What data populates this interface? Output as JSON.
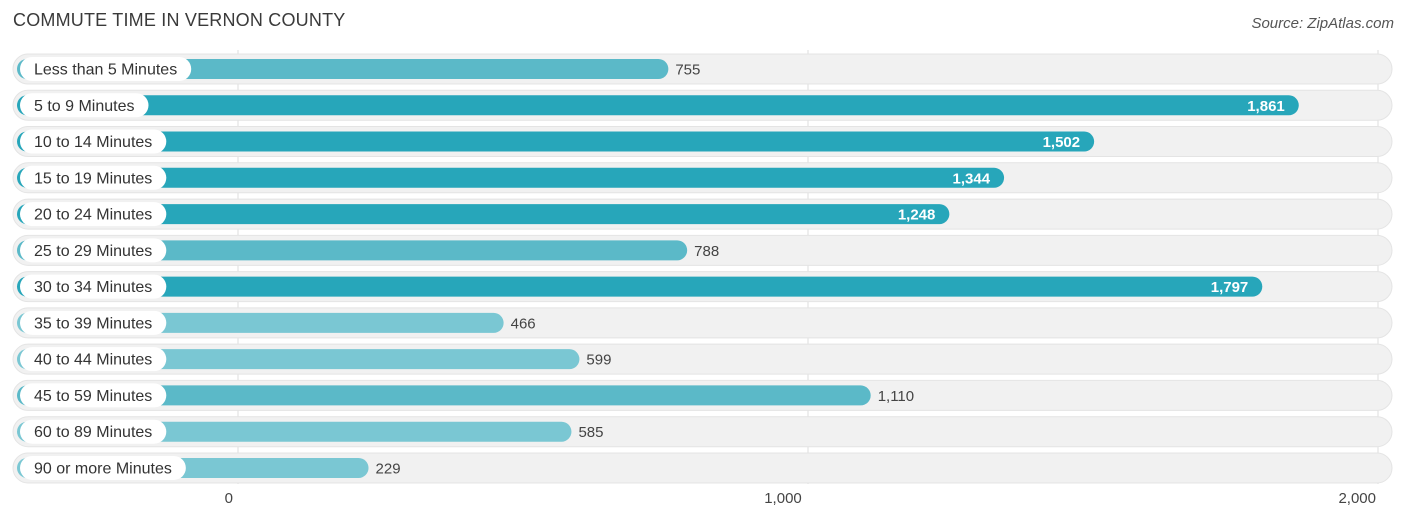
{
  "header": {
    "title": "COMMUTE TIME IN VERNON COUNTY",
    "source": "Source: ZipAtlas.com"
  },
  "colors": {
    "bar_dark": "#27a6ba",
    "bar_light": "#7ac7d3",
    "track": "#f1f1f1",
    "gridline": "#dddddd"
  },
  "chart_data": {
    "type": "bar",
    "orientation": "horizontal",
    "title": "COMMUTE TIME IN VERNON COUNTY",
    "categories": [
      "Less than 5 Minutes",
      "5 to 9 Minutes",
      "10 to 14 Minutes",
      "15 to 19 Minutes",
      "20 to 24 Minutes",
      "25 to 29 Minutes",
      "30 to 34 Minutes",
      "35 to 39 Minutes",
      "40 to 44 Minutes",
      "45 to 59 Minutes",
      "60 to 89 Minutes",
      "90 or more Minutes"
    ],
    "values": [
      755,
      1861,
      1502,
      1344,
      1248,
      788,
      1797,
      466,
      599,
      1110,
      585,
      229
    ],
    "value_labels": [
      "755",
      "1,861",
      "1,502",
      "1,344",
      "1,248",
      "788",
      "1,797",
      "466",
      "599",
      "1,110",
      "585",
      "229"
    ],
    "xlim": [
      0,
      2000
    ],
    "xticks": [
      0,
      1000,
      2000
    ],
    "xtick_labels": [
      "0",
      "1,000",
      "2,000"
    ],
    "xlabel": "",
    "ylabel": "",
    "grid": true
  }
}
